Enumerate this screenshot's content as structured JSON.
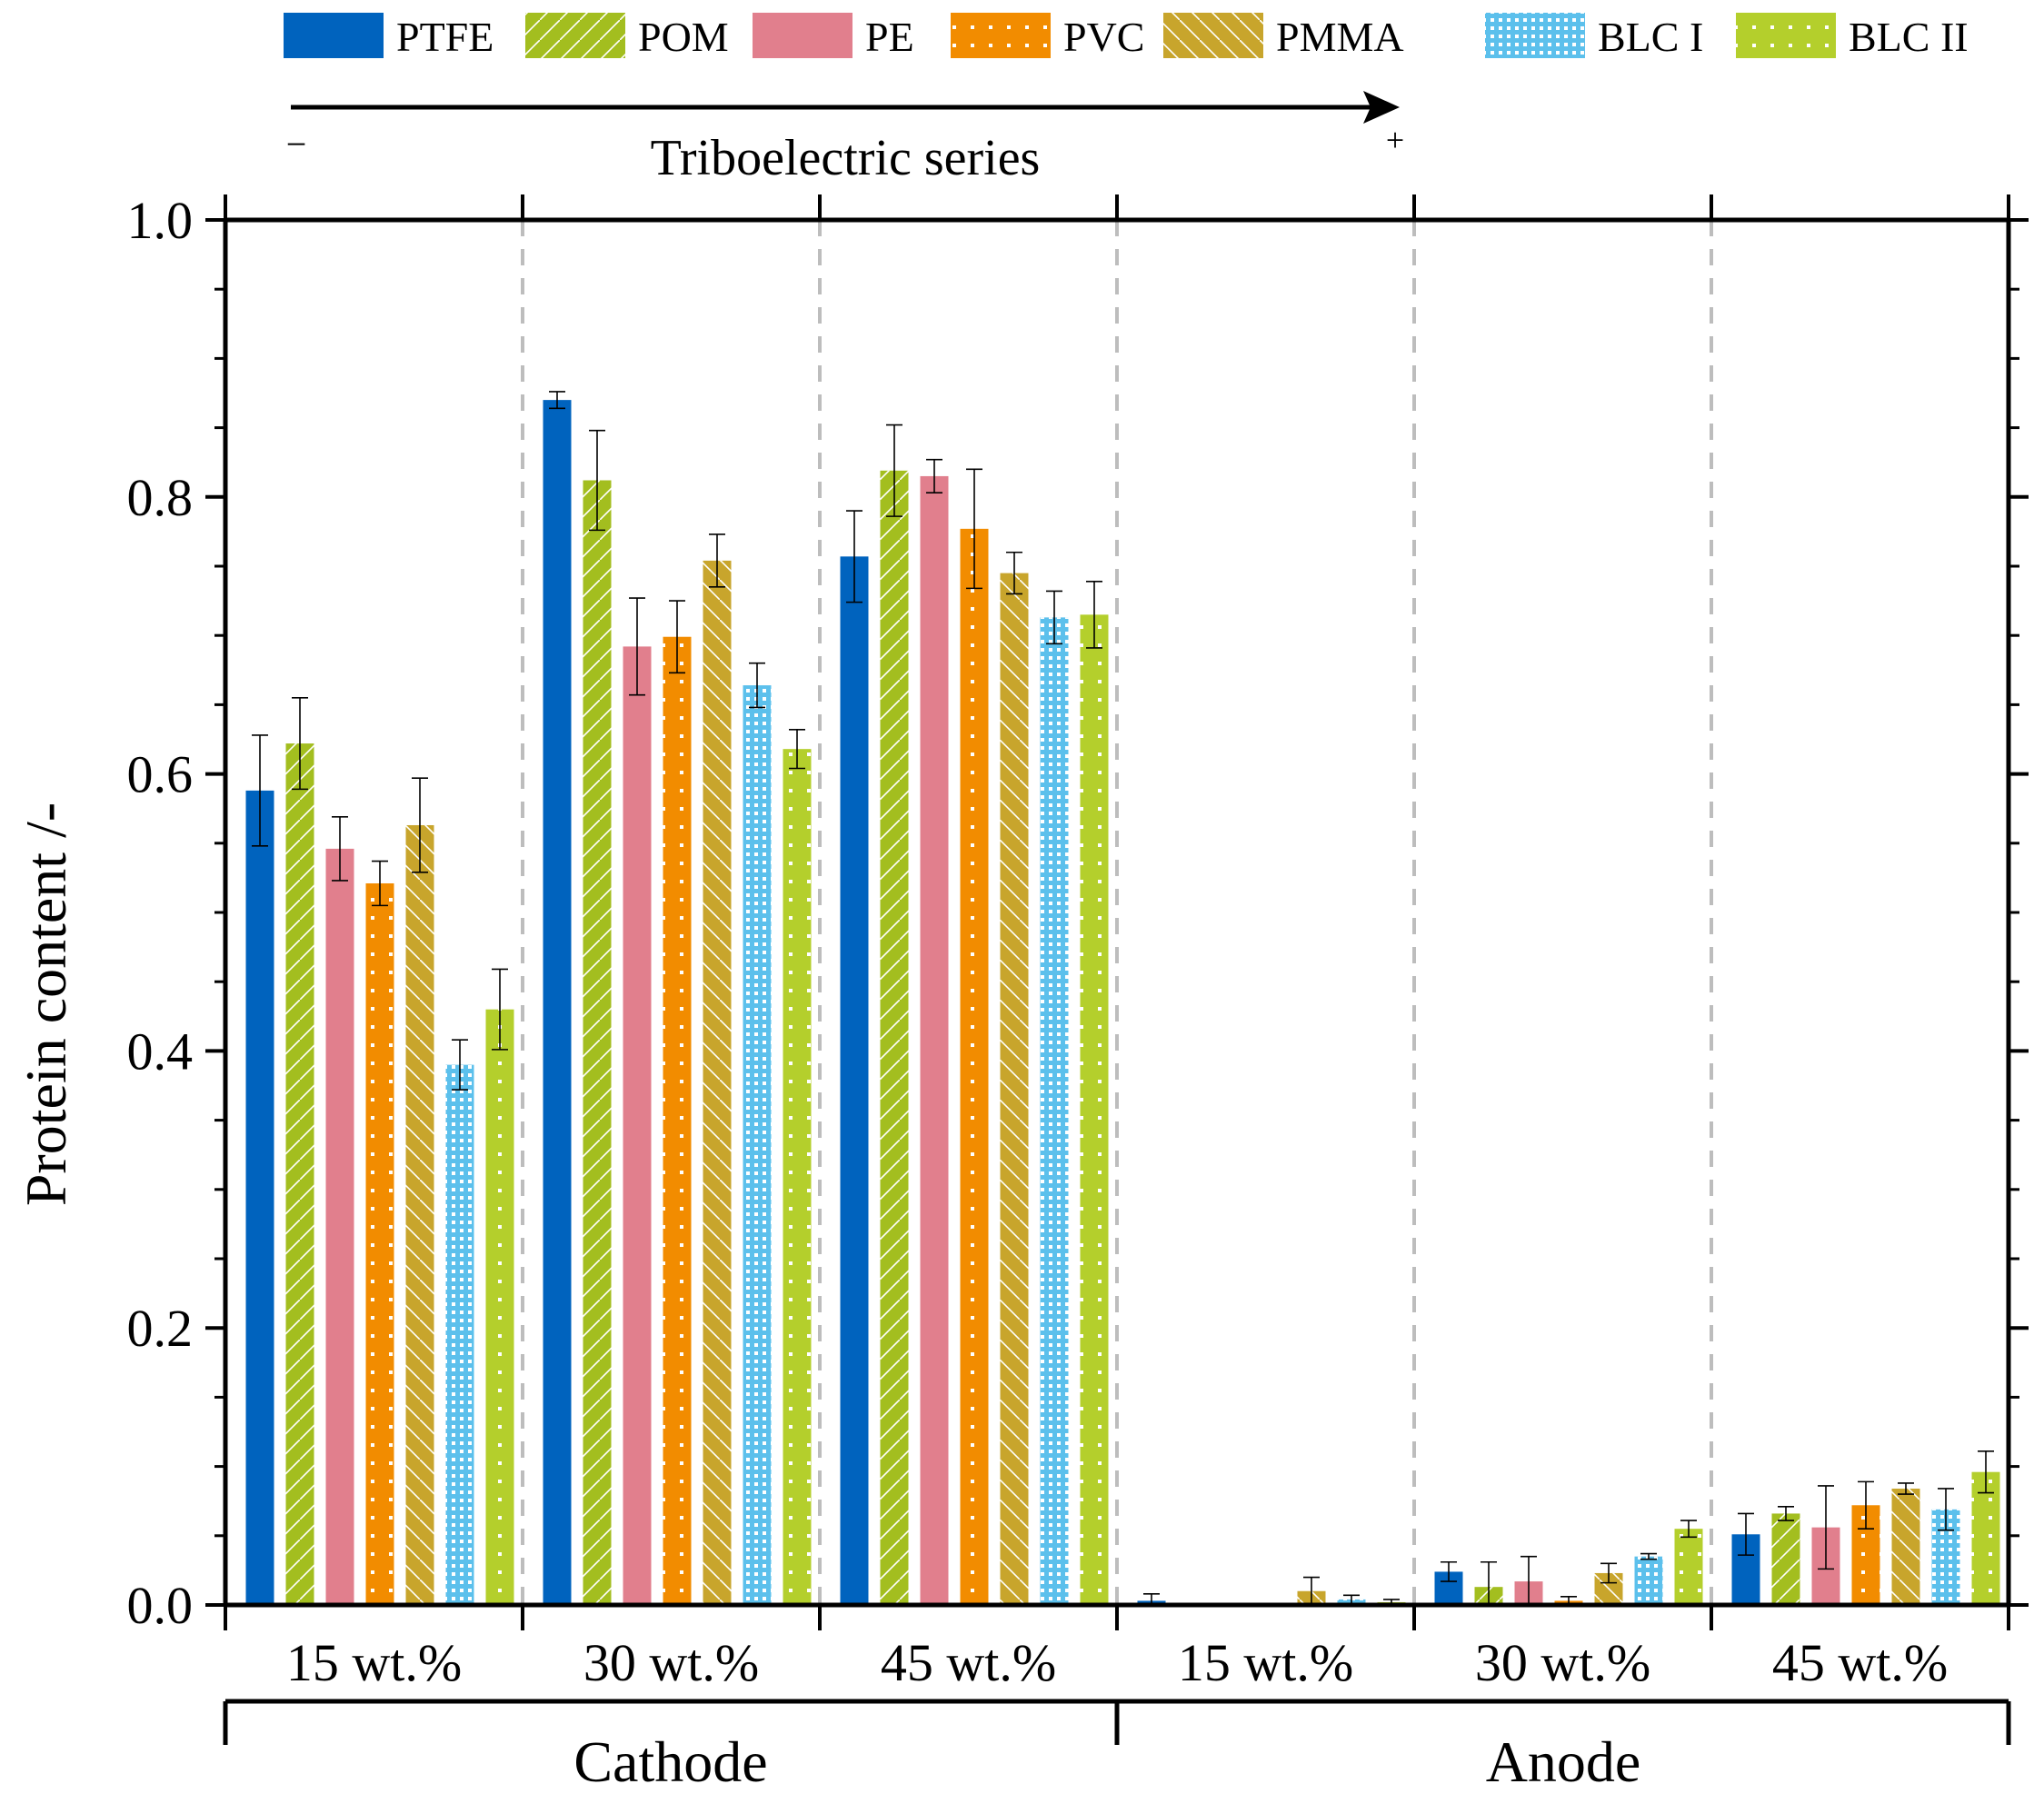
{
  "chart_data": {
    "type": "bar",
    "ylabel": "Protein content /-",
    "ylim": [
      0,
      1.0
    ],
    "yticks": [
      "0.0",
      "0.2",
      "0.4",
      "0.6",
      "0.8",
      "1.0"
    ],
    "categories": [
      "15 wt.%",
      "30 wt.%",
      "45 wt.%",
      "15 wt.%",
      "30 wt.%",
      "45 wt.%"
    ],
    "groups": [
      "Cathode",
      "Anode"
    ],
    "series_arrow": {
      "label": "Triboelectric series",
      "minus": "−",
      "plus": "+"
    },
    "series": [
      {
        "name": "PTFE",
        "color": "#0063be",
        "pattern": "solid",
        "values": [
          0.588,
          0.87,
          0.757,
          0.003,
          0.024,
          0.051
        ],
        "errors": [
          0.04,
          0.006,
          0.033,
          0.005,
          0.007,
          0.015
        ]
      },
      {
        "name": "POM",
        "color": "#a3be1f",
        "pattern": "slash",
        "values": [
          0.622,
          0.812,
          0.819,
          0.0,
          0.013,
          0.066
        ],
        "errors": [
          0.033,
          0.036,
          0.033,
          0.0,
          0.018,
          0.005
        ]
      },
      {
        "name": "PE",
        "color": "#e17f8d",
        "pattern": "solid",
        "values": [
          0.546,
          0.692,
          0.815,
          0.0,
          0.017,
          0.056
        ],
        "errors": [
          0.023,
          0.035,
          0.012,
          0.0,
          0.018,
          0.03
        ]
      },
      {
        "name": "PVC",
        "color": "#f28c00",
        "pattern": "dots-sparse",
        "values": [
          0.521,
          0.699,
          0.777,
          0.0,
          0.003,
          0.072
        ],
        "errors": [
          0.016,
          0.026,
          0.043,
          0.0,
          0.003,
          0.017
        ]
      },
      {
        "name": "PMMA",
        "color": "#c8a52c",
        "pattern": "backslash",
        "values": [
          0.563,
          0.754,
          0.745,
          0.01,
          0.023,
          0.084
        ],
        "errors": [
          0.034,
          0.019,
          0.015,
          0.01,
          0.007,
          0.004
        ]
      },
      {
        "name": "BLC I",
        "color": "#5cc0ec",
        "pattern": "dots-dense",
        "values": [
          0.39,
          0.664,
          0.713,
          0.004,
          0.035,
          0.069
        ],
        "errors": [
          0.018,
          0.016,
          0.019,
          0.003,
          0.002,
          0.015
        ]
      },
      {
        "name": "BLC II",
        "color": "#b4cf2c",
        "pattern": "dots-sparse",
        "values": [
          0.43,
          0.618,
          0.715,
          0.002,
          0.055,
          0.096
        ],
        "errors": [
          0.029,
          0.014,
          0.024,
          0.002,
          0.006,
          0.015
        ]
      }
    ]
  }
}
